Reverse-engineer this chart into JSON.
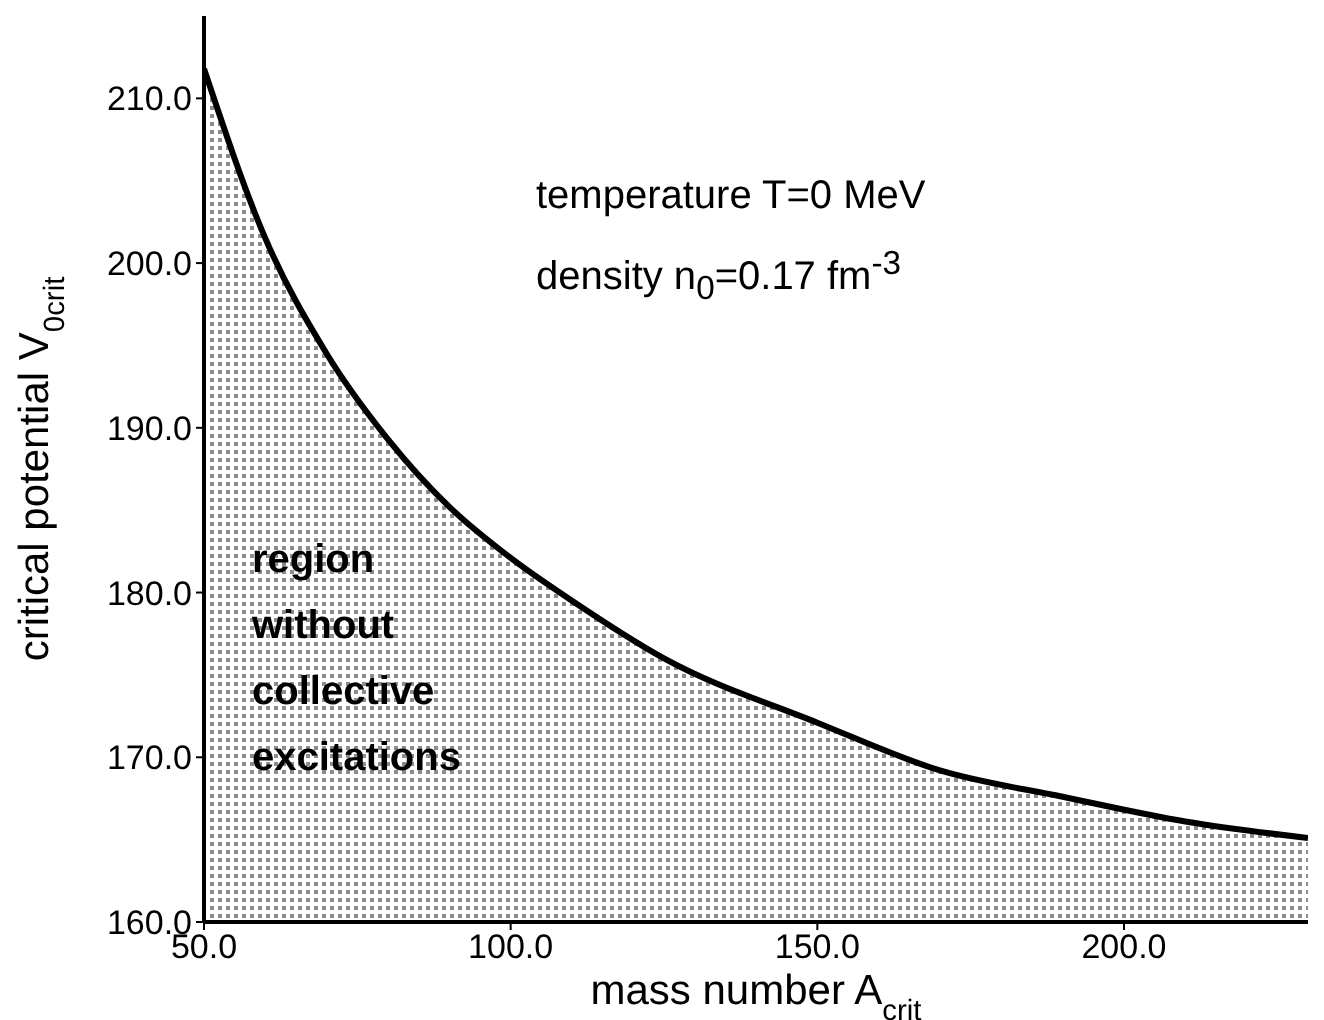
{
  "chart_data": {
    "type": "area",
    "xlabel": "mass number A$_{crit}$",
    "ylabel": "critical potential V$_{0}$$_{crit}$",
    "x": [
      50,
      60,
      70,
      80,
      90,
      100,
      110,
      125,
      150,
      170,
      190,
      210,
      230
    ],
    "series": [
      {
        "color": "#000000",
        "values": [
          211.8,
          201.5,
          194.5,
          189.3,
          185.2,
          182.1,
          179.5,
          176.0,
          172.1,
          169.2,
          167.6,
          166.1,
          165.1
        ]
      }
    ],
    "xlim": [
      50,
      230
    ],
    "ylim": [
      160,
      215
    ],
    "xticks": [
      {
        "value": 50,
        "label": "50.0"
      },
      {
        "value": 100,
        "label": "100.0"
      },
      {
        "value": 150,
        "label": "150.0"
      },
      {
        "value": 200,
        "label": "200.0"
      }
    ],
    "yticks": [
      {
        "value": 160,
        "label": "160.0"
      },
      {
        "value": 170,
        "label": "170.0"
      },
      {
        "value": 180,
        "label": "180.0"
      },
      {
        "value": 190,
        "label": "190.0"
      },
      {
        "value": 200,
        "label": "200.0"
      },
      {
        "value": 210,
        "label": "210.0"
      }
    ],
    "grid": false,
    "marker": "none",
    "line_style": "solid",
    "annotations": [
      "temperature T=0 MeV",
      "density n$_{0}$=0.17 fm$^{-3}$",
      "region without collective excitations"
    ]
  }
}
